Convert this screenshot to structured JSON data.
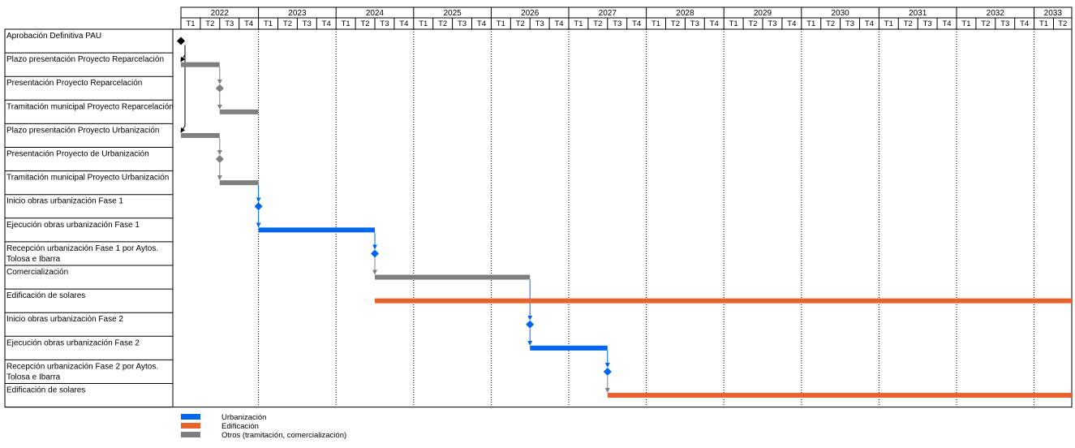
{
  "chart_data": {
    "type": "gantt",
    "years": [
      "2022",
      "2023",
      "2024",
      "2025",
      "2026",
      "2027",
      "2028",
      "2029",
      "2030",
      "2031",
      "2032",
      "2033"
    ],
    "quarters": [
      "T1",
      "T2",
      "T3",
      "T4"
    ],
    "timeline_end": "2033 T2",
    "colors": {
      "urbanizacion": "#0066ee",
      "edificacion": "#e8622c",
      "otros": "#7f7f7f",
      "milestone_black": "#000000"
    },
    "tasks": [
      {
        "label": "Aprobación Definitiva PAU",
        "kind": "milestone",
        "category": "black",
        "start": "2022 T1"
      },
      {
        "label": "Plazo presentación Proyecto Reparcelación",
        "kind": "bar",
        "category": "otros",
        "start": "2022 T1",
        "end": "2022 T2"
      },
      {
        "label": "Presentación Proyecto Reparcelación",
        "kind": "milestone",
        "category": "otros",
        "start": "2022 T3"
      },
      {
        "label": "Tramitación municipal Proyecto Reparcelación",
        "kind": "bar",
        "category": "otros",
        "start": "2022 T3",
        "end": "2022 T4"
      },
      {
        "label": "Plazo presentación Proyecto Urbanización",
        "kind": "bar",
        "category": "otros",
        "start": "2022 T1",
        "end": "2022 T2"
      },
      {
        "label": "Presentación Proyecto de Urbanización",
        "kind": "milestone",
        "category": "otros",
        "start": "2022 T3"
      },
      {
        "label": "Tramitación municipal Proyecto Urbanización",
        "kind": "bar",
        "category": "otros",
        "start": "2022 T3",
        "end": "2022 T4"
      },
      {
        "label": "Inicio obras urbanización Fase 1",
        "kind": "milestone",
        "category": "urbanizacion",
        "start": "2023 T1"
      },
      {
        "label": "Ejecución obras urbanización Fase 1",
        "kind": "bar",
        "category": "urbanizacion",
        "start": "2023 T1",
        "end": "2024 T2"
      },
      {
        "label": "Recepción urbanización Fase 1 por  Aytos.",
        "label2": "Tolosa e Ibarra",
        "kind": "milestone",
        "category": "urbanizacion",
        "start": "2024 T3"
      },
      {
        "label": "Comercialización",
        "kind": "bar",
        "category": "otros",
        "start": "2024 T3",
        "end": "2026 T2"
      },
      {
        "label": "Edificación de solares",
        "kind": "bar",
        "category": "edificacion",
        "start": "2024 T3",
        "end": "2033 T2"
      },
      {
        "label": "Inicio obras urbanización Fase 2",
        "kind": "milestone",
        "category": "urbanizacion",
        "start": "2026 T3"
      },
      {
        "label": "Ejecución obras urbanización Fase 2",
        "kind": "bar",
        "category": "urbanizacion",
        "start": "2026 T3",
        "end": "2027 T2"
      },
      {
        "label": "Recepción urbanización Fase 2 por  Aytos.",
        "label2": "Tolosa e Ibarra",
        "kind": "milestone",
        "category": "urbanizacion",
        "start": "2027 T3"
      },
      {
        "label": "Edificación de solares",
        "kind": "bar",
        "category": "edificacion",
        "start": "2027 T3",
        "end": "2033 T2"
      }
    ],
    "links": [
      [
        0,
        1
      ],
      [
        1,
        2
      ],
      [
        2,
        3
      ],
      [
        0,
        4
      ],
      [
        4,
        5
      ],
      [
        5,
        6
      ],
      [
        6,
        7
      ],
      [
        7,
        8
      ],
      [
        8,
        9
      ],
      [
        9,
        10
      ],
      [
        10,
        12
      ],
      [
        12,
        13
      ],
      [
        13,
        14
      ],
      [
        14,
        15
      ]
    ],
    "legend": [
      {
        "label": "Urbanización",
        "category": "urbanizacion"
      },
      {
        "label": "Edificación",
        "category": "edificacion"
      },
      {
        "label": "Otros (tramitación, comercialización)",
        "category": "otros"
      }
    ]
  }
}
